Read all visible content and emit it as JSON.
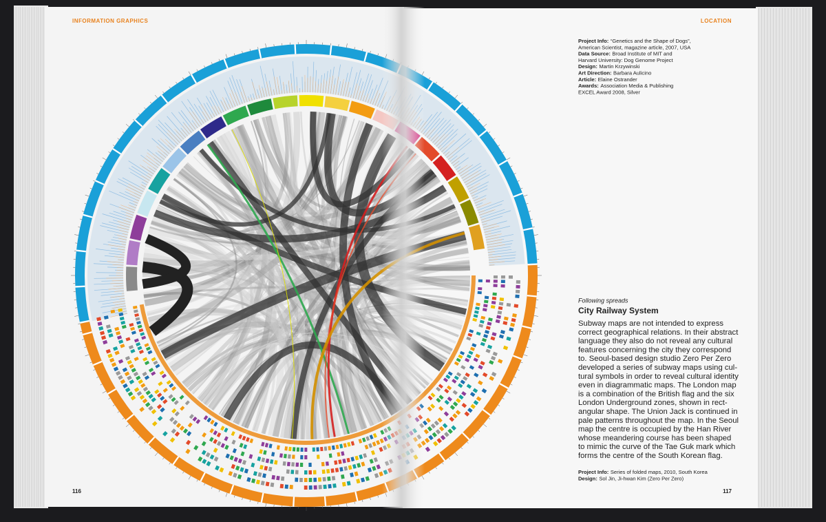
{
  "header": {
    "left": "INFORMATION GRAPHICS",
    "right": "LOCATION"
  },
  "project_info": [
    {
      "label": "Project Info:",
      "lines": [
        "“Genetics and the Shape of Dogs”,",
        "American Scientist, magazine article, 2007, USA"
      ]
    },
    {
      "label": "Data Source:",
      "lines": [
        "Broad Institute of MIT and",
        "Harvard University: Dog Genome Project"
      ]
    },
    {
      "label": "Design:",
      "lines": [
        "Martin Krzywinski"
      ]
    },
    {
      "label": "Art Direction:",
      "lines": [
        "Barbara Aulicino"
      ]
    },
    {
      "label": "Article:",
      "lines": [
        "Elaine Ostrander"
      ]
    },
    {
      "label": "Awards:",
      "lines": [
        "Association Media & Publishing",
        "EXCEL Award 2008, Silver"
      ]
    }
  ],
  "following": {
    "kicker": "Following spreads",
    "title": "City Railway System",
    "body": [
      "Subway maps are not intended to express",
      "correct geographical relations. In their abstract",
      "language they also do not reveal any cultural",
      "features concerning the city they correspond",
      "to. Seoul-based design studio Zero Per Zero",
      "developed a series of subway maps using cul-",
      "tural symbols in order to reveal cultural identity",
      "even in diagrammatic maps. The London map",
      "is a combination of the British flag and the six",
      "London Underground zones, shown in rect-",
      "angular shape. The Union Jack is continued in",
      "pale patterns throughout the map. In the Seoul",
      "map the centre is occupied by the Han River",
      "whose meandering course has been shaped",
      "to mimic the curve of the Tae Guk mark which",
      "forms the centre of the South Korean flag."
    ],
    "credits": [
      {
        "label": "Project Info:",
        "text": "Series of folded maps, 2010, South Korea"
      },
      {
        "label": "Design:",
        "text": "Sol Jin, Ji-hwan Kim (Zero Per Zero)"
      }
    ]
  },
  "page_numbers": {
    "left": "116",
    "right": "117"
  }
}
